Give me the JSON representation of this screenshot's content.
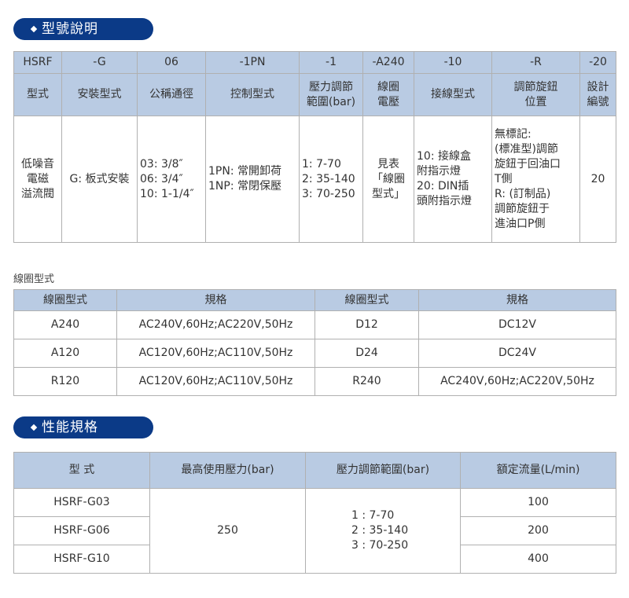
{
  "section1": {
    "title": "型號說明",
    "codes": [
      "HSRF",
      "-G",
      "06",
      "-1PN",
      "-1",
      "-A240",
      "-10",
      "-R",
      "-20"
    ],
    "headers": [
      "型式",
      "安裝型式",
      "公稱通徑",
      "控制型式",
      "壓力調節\n範圍(bar)",
      "線圈\n電壓",
      "接線型式",
      "調節旋鈕\n位置",
      "設計\n編號"
    ],
    "values": [
      "低噪音\n電磁\n溢流閥",
      "G: 板式安裝",
      "03: 3/8″\n06: 3/4″\n10: 1-1/4″",
      "1PN: 常開卸荷\n1NP: 常閉保壓",
      "1: 7-70\n2: 35-140\n3: 70-250",
      "見表\n「線圈\n型式」",
      "10: 接線盒\n附指示燈\n20: DIN插\n頭附指示燈",
      "無標記:\n(標准型)調節\n旋鈕于回油口\nT側\nR: (訂制品)\n調節旋鈕于\n進油口P側",
      "20"
    ]
  },
  "coil": {
    "caption": "線圈型式",
    "headers": [
      "線圈型式",
      "規格",
      "線圈型式",
      "規格"
    ],
    "rows": [
      [
        "A240",
        "AC240V,60Hz;AC220V,50Hz",
        "D12",
        "DC12V"
      ],
      [
        "A120",
        "AC120V,60Hz;AC110V,50Hz",
        "D24",
        "DC24V"
      ],
      [
        "R120",
        "AC120V,60Hz;AC110V,50Hz",
        "R240",
        "AC240V,60Hz;AC220V,50Hz"
      ]
    ]
  },
  "section2": {
    "title": "性能規格",
    "headers": [
      "型 式",
      "最高使用壓力(bar)",
      "壓力調節範圍(bar)",
      "額定流量(L/min)"
    ],
    "models": [
      "HSRF-G03",
      "HSRF-G06",
      "HSRF-G10"
    ],
    "max_pressure": "250",
    "range": "1 : 7-70\n2 : 35-140\n3 : 70-250",
    "flows": [
      "100",
      "200",
      "400"
    ]
  },
  "colors": {
    "pill": "#0b3a87",
    "header": "#b9cbe3"
  }
}
